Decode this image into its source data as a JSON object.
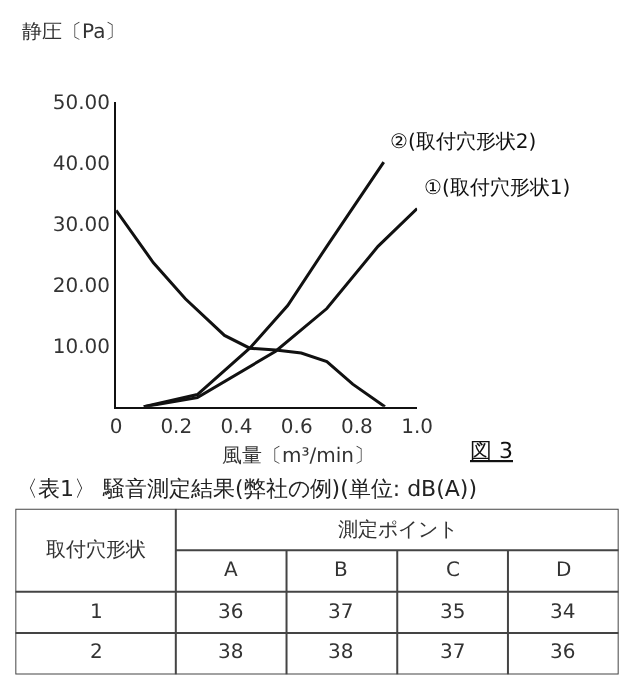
{
  "chart_data": [
    {
      "type": "line",
      "xlabel": "風量〔m³/min〕",
      "ylabel": "静圧〔Pa〕",
      "annotations": [
        "図 3"
      ],
      "xlim": [
        0,
        1.0
      ],
      "xticks": [
        0,
        0.2,
        0.4,
        0.6,
        0.8,
        {
          "value": 1.0,
          "label": "1.0"
        }
      ],
      "ylim": [
        0,
        50
      ],
      "yticks": [
        {
          "value": 10,
          "label": "10.00"
        },
        {
          "value": 20,
          "label": "20.00"
        },
        {
          "value": 30,
          "label": "30.00"
        },
        {
          "value": 40,
          "label": "40.00"
        },
        {
          "value": 50,
          "label": "50.00"
        }
      ],
      "grid": false,
      "legend": false,
      "marker": "none",
      "line_style": "solid",
      "series": [
        {
          "color": "#111111",
          "x": [
            0,
            0.124,
            0.23,
            0.36,
            0.444,
            0.53,
            0.615,
            0.7,
            0.786,
            0.893
          ],
          "values": [
            32.2,
            23.6,
            17.7,
            11.7,
            9.6,
            9.3,
            8.8,
            7.4,
            3.7,
            0
          ]
        },
        {
          "name": "②(取付穴形状2)",
          "color": "#111111",
          "x": [
            0.092,
            0.27,
            0.444,
            0.57,
            0.7,
            0.889
          ],
          "values": [
            0,
            2.0,
            9.6,
            16.6,
            26.3,
            40.1
          ]
        },
        {
          "name": "①(取付穴形状1)",
          "color": "#111111",
          "x": [
            0.092,
            0.27,
            0.53,
            0.7,
            0.87,
            1.0
          ],
          "values": [
            0,
            1.5,
            9.1,
            16.1,
            26.3,
            32.5
          ]
        }
      ]
    },
    {
      "type": "heatmap",
      "title": "〈表1〉 騒音測定結果(弊社の例)(単位: dB(A))",
      "xlabel": "測定ポイント",
      "ylabel": "取付穴形状",
      "categories": [
        "A",
        "B",
        "C",
        "D"
      ],
      "y_categories": [
        "1",
        "2"
      ],
      "cells": [
        [
          36,
          37,
          35,
          34
        ],
        [
          38,
          38,
          37,
          36
        ]
      ],
      "data_labels": true
    }
  ]
}
